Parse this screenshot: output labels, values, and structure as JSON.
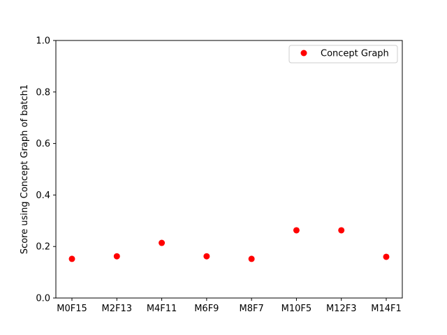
{
  "chart_data": {
    "type": "scatter",
    "categories": [
      "M0F15",
      "M2F13",
      "M4F11",
      "M6F9",
      "M8F7",
      "M10F5",
      "M12F3",
      "M14F1"
    ],
    "series": [
      {
        "name": "Concept Graph",
        "color": "#ff0000",
        "values": [
          0.152,
          0.162,
          0.214,
          0.162,
          0.152,
          0.263,
          0.263,
          0.16
        ]
      }
    ],
    "xlabel": "",
    "ylabel": "Score using Concept Graph of batch1",
    "ylim": [
      0.0,
      1.0
    ],
    "yticks": [
      "0.0",
      "0.2",
      "0.4",
      "0.6",
      "0.8",
      "1.0"
    ],
    "grid": false,
    "legend_position": "top-right"
  }
}
